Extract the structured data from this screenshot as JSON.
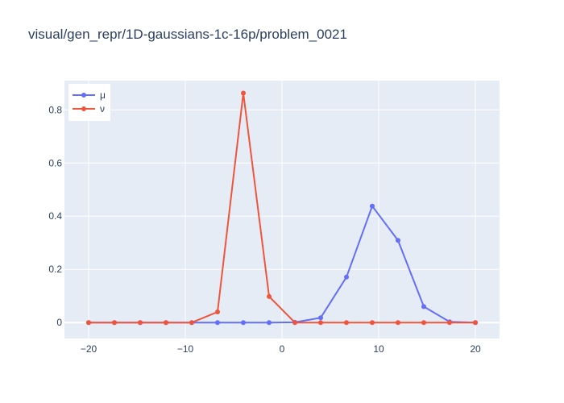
{
  "chart_data": {
    "type": "line",
    "title": "visual/gen_repr/1D-gaussians-1c-16p/problem_0021",
    "xlabel": "",
    "ylabel": "",
    "xlim": [
      -22.5,
      22.5
    ],
    "ylim": [
      -0.06,
      0.91
    ],
    "grid": true,
    "legend_position": "top-left",
    "x": [
      -20,
      -17.333,
      -14.667,
      -12,
      -9.333,
      -6.667,
      -4,
      -1.333,
      1.333,
      4,
      6.667,
      9.333,
      12,
      14.667,
      17.333,
      20
    ],
    "x_ticks": [
      -20,
      -10,
      0,
      10,
      20
    ],
    "x_tick_labels": [
      "−20",
      "−10",
      "0",
      "10",
      "20"
    ],
    "y_ticks": [
      0,
      0.2,
      0.4,
      0.6,
      0.8
    ],
    "y_tick_labels": [
      "0",
      "0.2",
      "0.4",
      "0.6",
      "0.8"
    ],
    "series": [
      {
        "name": "μ",
        "color": "#636efa",
        "values": [
          0,
          0,
          0,
          0,
          0,
          0,
          0,
          0,
          0.001,
          0.018,
          0.171,
          0.438,
          0.309,
          0.06,
          0.003,
          0
        ]
      },
      {
        "name": "ν",
        "color": "#ef553b",
        "values": [
          0,
          0,
          0,
          0,
          0,
          0.04,
          0.863,
          0.098,
          0,
          0,
          0,
          0,
          0,
          0,
          0,
          0
        ]
      }
    ]
  }
}
